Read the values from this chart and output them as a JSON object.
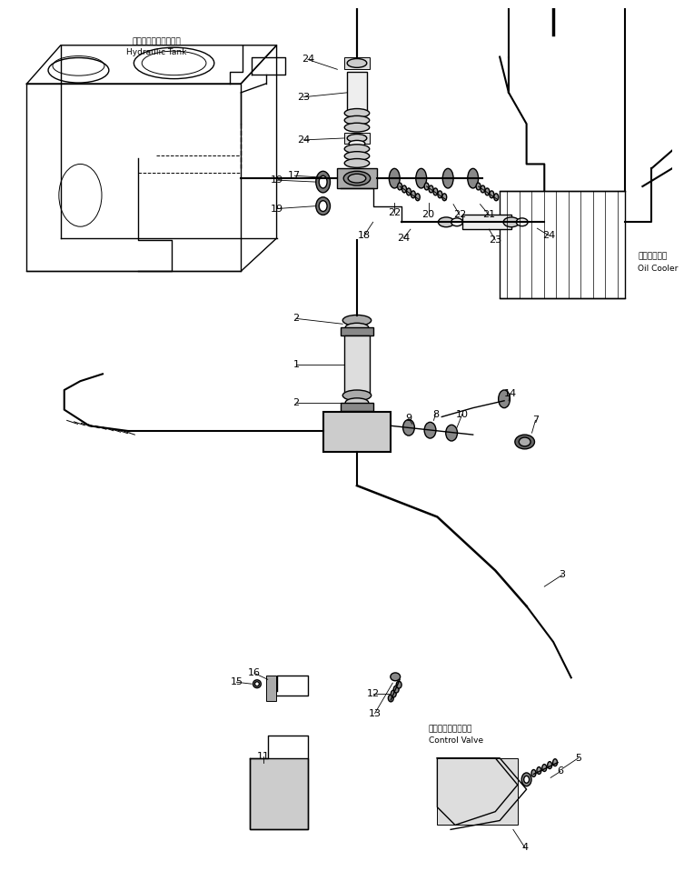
{
  "bg_color": "#ffffff",
  "line_color": "#000000",
  "fig_width": 7.53,
  "fig_height": 9.69,
  "labels": {
    "hydraulic_tank_jp": "ハイドロリックタンク",
    "hydraulic_tank_en": "Hydraulic Tank",
    "oil_cooler_jp": "オイルクーラ",
    "oil_cooler_en": "Oil Cooler",
    "control_valve_jp": "コントロールバルブ",
    "control_valve_en": "Control Valve"
  }
}
